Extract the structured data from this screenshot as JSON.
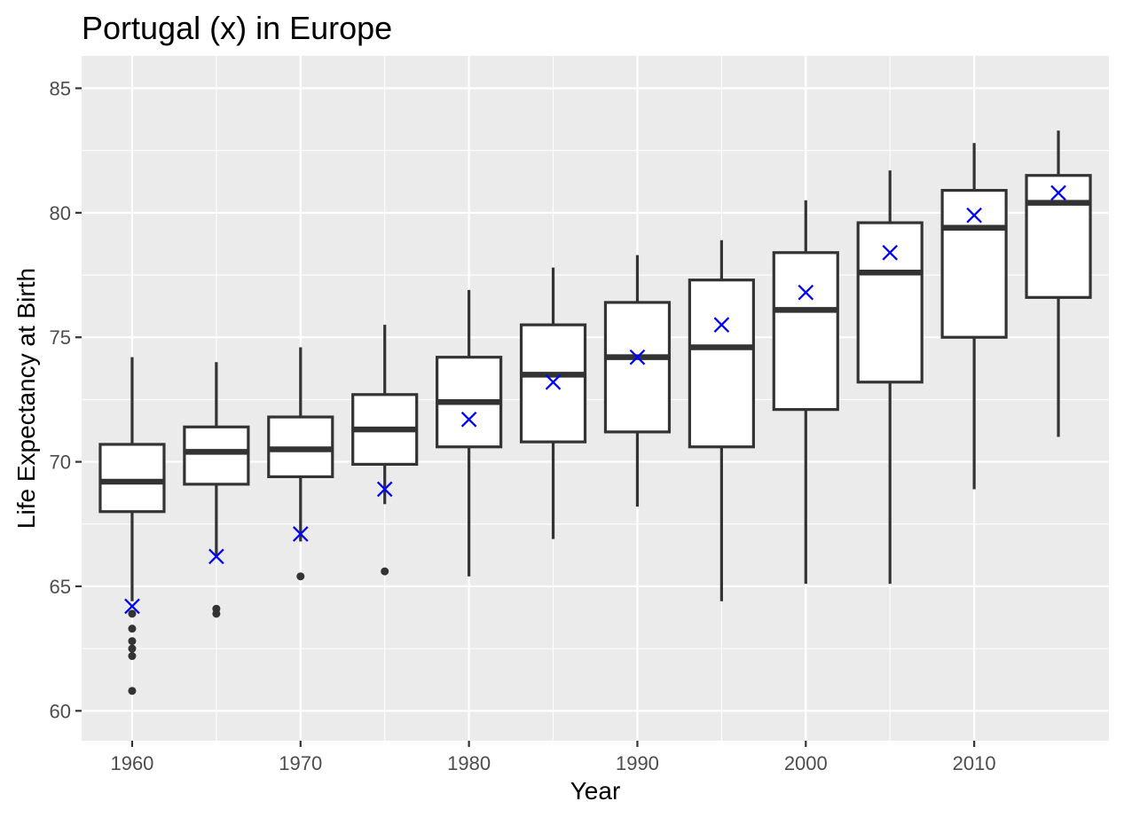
{
  "chart_data": {
    "type": "box",
    "title": "Portugal (x) in Europe",
    "xlabel": "Year",
    "ylabel": "Life Expectancy at Birth",
    "xlim": [
      1957,
      2018
    ],
    "ylim": [
      58.8,
      86.3
    ],
    "xticks": [
      1960,
      1970,
      1980,
      1990,
      2000,
      2010
    ],
    "yticks": [
      60,
      65,
      70,
      75,
      80,
      85
    ],
    "grid": true,
    "legend": "none",
    "colors": {
      "panel_background": "#ebebeb",
      "grid": "#ffffff",
      "box_fill": "#ffffff",
      "box_stroke": "#333333",
      "outlier": "#333333",
      "highlight_marker": "#0000ff",
      "tick_text": "#4d4d4d"
    },
    "highlight_marker": "x",
    "boxes": [
      {
        "x": 1960,
        "lower_whisker": 64.4,
        "q1": 68.0,
        "median": 69.2,
        "q3": 70.7,
        "upper_whisker": 74.2,
        "outliers": [
          63.9,
          63.3,
          62.8,
          62.5,
          62.2,
          60.8
        ],
        "highlight": 64.2
      },
      {
        "x": 1965,
        "lower_whisker": 66.2,
        "q1": 69.1,
        "median": 70.4,
        "q3": 71.4,
        "upper_whisker": 74.0,
        "outliers": [
          64.1,
          63.9
        ],
        "highlight": 66.2
      },
      {
        "x": 1970,
        "lower_whisker": 66.8,
        "q1": 69.4,
        "median": 70.5,
        "q3": 71.8,
        "upper_whisker": 74.6,
        "outliers": [
          65.4
        ],
        "highlight": 67.1
      },
      {
        "x": 1975,
        "lower_whisker": 68.3,
        "q1": 69.9,
        "median": 71.3,
        "q3": 72.7,
        "upper_whisker": 75.5,
        "outliers": [
          65.6
        ],
        "highlight": 68.9
      },
      {
        "x": 1980,
        "lower_whisker": 65.4,
        "q1": 70.6,
        "median": 72.4,
        "q3": 74.2,
        "upper_whisker": 76.9,
        "outliers": [],
        "highlight": 71.7
      },
      {
        "x": 1985,
        "lower_whisker": 66.9,
        "q1": 70.8,
        "median": 73.5,
        "q3": 75.5,
        "upper_whisker": 77.8,
        "outliers": [],
        "highlight": 73.2
      },
      {
        "x": 1990,
        "lower_whisker": 68.2,
        "q1": 71.2,
        "median": 74.2,
        "q3": 76.4,
        "upper_whisker": 78.3,
        "outliers": [],
        "highlight": 74.2
      },
      {
        "x": 1995,
        "lower_whisker": 64.4,
        "q1": 70.6,
        "median": 74.6,
        "q3": 77.3,
        "upper_whisker": 78.9,
        "outliers": [],
        "highlight": 75.5
      },
      {
        "x": 2000,
        "lower_whisker": 65.1,
        "q1": 72.1,
        "median": 76.1,
        "q3": 78.4,
        "upper_whisker": 80.5,
        "outliers": [],
        "highlight": 76.8
      },
      {
        "x": 2005,
        "lower_whisker": 65.1,
        "q1": 73.2,
        "median": 77.6,
        "q3": 79.6,
        "upper_whisker": 81.7,
        "outliers": [],
        "highlight": 78.4
      },
      {
        "x": 2010,
        "lower_whisker": 68.9,
        "q1": 75.0,
        "median": 79.4,
        "q3": 80.9,
        "upper_whisker": 82.8,
        "outliers": [],
        "highlight": 79.9
      },
      {
        "x": 2015,
        "lower_whisker": 71.0,
        "q1": 76.6,
        "median": 80.4,
        "q3": 81.5,
        "upper_whisker": 83.3,
        "outliers": [],
        "highlight": 80.8
      }
    ]
  }
}
